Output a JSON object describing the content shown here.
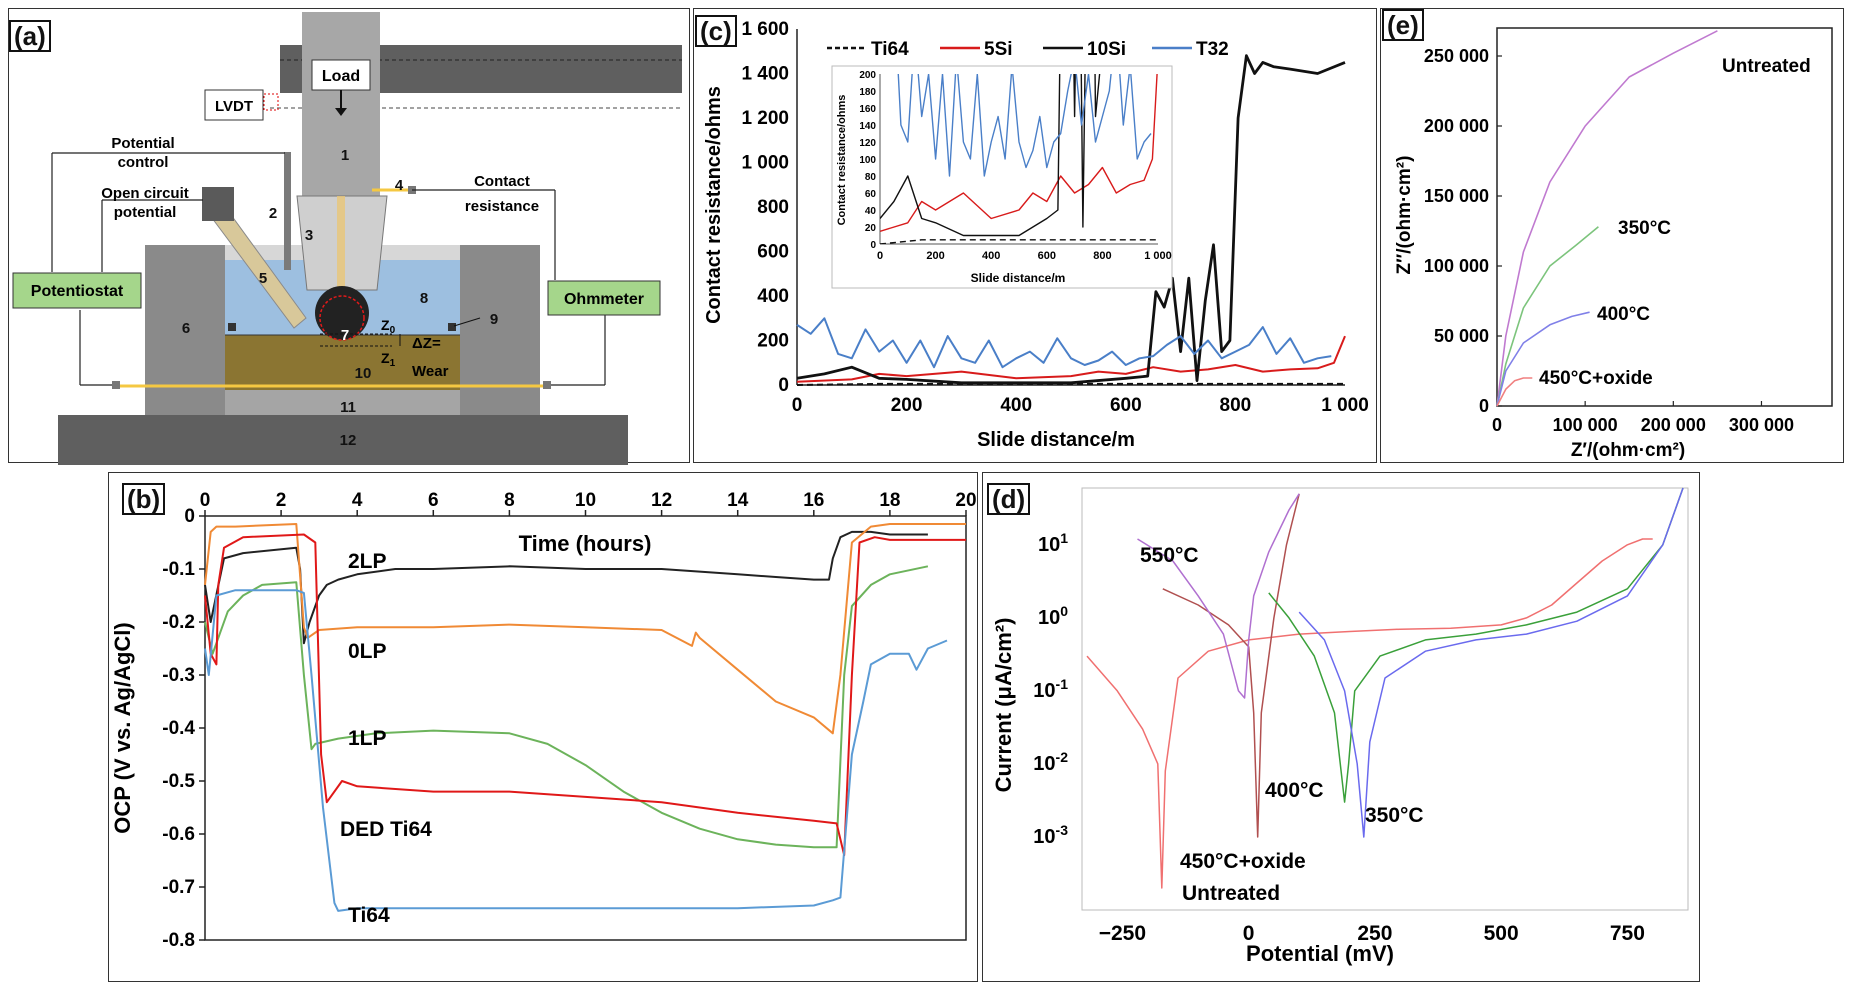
{
  "panels": {
    "a": {
      "label": "(a)",
      "texts": {
        "load": "Load",
        "lvdt": "LVDT",
        "potential_control": "Potential\ncontrol",
        "ocp": "Open circuit\npotential",
        "contact_res": "Contact\nresistance",
        "potentiostat": "Potentiostat",
        "ohmmeter": "Ohmmeter",
        "z0": "Z",
        "z0_sub": "0",
        "z1": "Z",
        "z1_sub": "1",
        "dz": "ΔZ=",
        "wear": "Wear",
        "numbers": [
          "1",
          "2",
          "3",
          "4",
          "5",
          "6",
          "7",
          "8",
          "9",
          "10",
          "11",
          "12"
        ]
      }
    },
    "b": {
      "label": "(b)"
    },
    "c": {
      "label": "(c)"
    },
    "d": {
      "label": "(d)"
    },
    "e": {
      "label": "(e)"
    }
  },
  "chart_data": [
    {
      "panel": "b",
      "type": "line",
      "xlabel": "Time (hours)",
      "ylabel": "OCP (V vs. Ag/AgCl)",
      "xlim": [
        0,
        20
      ],
      "ylim": [
        -0.8,
        0
      ],
      "xticks": [
        "0",
        "2",
        "4",
        "6",
        "8",
        "10",
        "12",
        "14",
        "16",
        "18",
        "20"
      ],
      "yticks": [
        "0",
        "-0.1",
        "-0.2",
        "-0.3",
        "-0.4",
        "-0.5",
        "-0.6",
        "-0.7",
        "-0.8"
      ],
      "series": [
        {
          "name": "2LP",
          "color": "#222222",
          "x": [
            0,
            0.15,
            0.5,
            1,
            2.4,
            2.5,
            2.6,
            2.75,
            3,
            3.2,
            3.5,
            4,
            5,
            6,
            8,
            10,
            12,
            14,
            15,
            16,
            16.4,
            16.5,
            16.7,
            17,
            17.5,
            18,
            19
          ],
          "y": [
            -0.13,
            -0.2,
            -0.08,
            -0.07,
            -0.06,
            -0.1,
            -0.24,
            -0.2,
            -0.15,
            -0.13,
            -0.12,
            -0.11,
            -0.1,
            -0.1,
            -0.095,
            -0.1,
            -0.1,
            -0.11,
            -0.115,
            -0.12,
            -0.12,
            -0.08,
            -0.04,
            -0.03,
            -0.03,
            -0.035,
            -0.035
          ]
        },
        {
          "name": "0LP",
          "color": "#f08a35",
          "x": [
            0,
            0.15,
            0.3,
            0.8,
            2.4,
            2.6,
            2.7,
            3,
            4,
            6,
            8,
            10,
            12,
            12.8,
            12.9,
            13,
            14,
            15,
            16,
            16.5,
            16.7,
            17,
            17.5,
            18,
            20
          ],
          "y": [
            -0.13,
            -0.03,
            -0.02,
            -0.02,
            -0.015,
            -0.21,
            -0.23,
            -0.215,
            -0.21,
            -0.21,
            -0.205,
            -0.21,
            -0.215,
            -0.245,
            -0.22,
            -0.23,
            -0.29,
            -0.35,
            -0.38,
            -0.41,
            -0.3,
            -0.05,
            -0.02,
            -0.015,
            -0.015
          ]
        },
        {
          "name": "1LP",
          "color": "#6cb35b",
          "x": [
            0,
            0.2,
            0.4,
            0.6,
            1,
            1.5,
            2.4,
            2.6,
            2.8,
            2.9,
            3.5,
            4.5,
            6,
            8,
            9,
            10,
            11,
            12,
            13,
            14,
            15,
            16,
            16.6,
            16.8,
            17,
            17.5,
            18,
            19
          ],
          "y": [
            -0.2,
            -0.26,
            -0.22,
            -0.18,
            -0.15,
            -0.13,
            -0.125,
            -0.3,
            -0.44,
            -0.43,
            -0.42,
            -0.41,
            -0.405,
            -0.41,
            -0.43,
            -0.47,
            -0.52,
            -0.56,
            -0.59,
            -0.61,
            -0.62,
            -0.625,
            -0.625,
            -0.3,
            -0.17,
            -0.13,
            -0.11,
            -0.095
          ]
        },
        {
          "name": "DED Ti64",
          "color": "#e01818",
          "x": [
            0,
            0.15,
            0.3,
            0.35,
            0.5,
            1,
            2.6,
            2.9,
            3.05,
            3.2,
            3.6,
            4,
            6,
            8,
            10,
            12,
            14,
            16,
            16.6,
            16.8,
            17.0,
            17.2,
            17.6,
            18,
            19,
            20
          ],
          "y": [
            -0.15,
            -0.26,
            -0.28,
            -0.13,
            -0.06,
            -0.04,
            -0.035,
            -0.05,
            -0.45,
            -0.54,
            -0.5,
            -0.51,
            -0.52,
            -0.52,
            -0.53,
            -0.54,
            -0.56,
            -0.575,
            -0.58,
            -0.64,
            -0.3,
            -0.05,
            -0.04,
            -0.045,
            -0.045,
            -0.045
          ]
        },
        {
          "name": "Ti64",
          "color": "#5b9bd5",
          "x": [
            0,
            0.1,
            0.3,
            0.8,
            1.5,
            2.4,
            2.6,
            2.8,
            3.1,
            3.4,
            3.5,
            4,
            6,
            8,
            10,
            12,
            14,
            16,
            16.5,
            16.7,
            17.0,
            17.3,
            17.5,
            18,
            18.5,
            18.7,
            19,
            19.5
          ],
          "y": [
            -0.25,
            -0.3,
            -0.15,
            -0.14,
            -0.14,
            -0.14,
            -0.145,
            -0.3,
            -0.55,
            -0.73,
            -0.745,
            -0.74,
            -0.74,
            -0.74,
            -0.74,
            -0.74,
            -0.74,
            -0.735,
            -0.725,
            -0.72,
            -0.45,
            -0.35,
            -0.28,
            -0.26,
            -0.26,
            -0.29,
            -0.25,
            -0.235
          ]
        }
      ],
      "annotations": [
        "2LP",
        "0LP",
        "1LP",
        "DED Ti64",
        "Ti64"
      ]
    },
    {
      "panel": "c",
      "type": "line",
      "xlabel": "Slide distance/m",
      "ylabel": "Contact resistance/ohms",
      "xlim": [
        0,
        1000
      ],
      "ylim": [
        0,
        1600
      ],
      "xticks": [
        "0",
        "200",
        "400",
        "600",
        "800",
        "1 000"
      ],
      "yticks": [
        "0",
        "200",
        "400",
        "600",
        "800",
        "1 000",
        "1 200",
        "1 400",
        "1 600"
      ],
      "legend": [
        "Ti64",
        "5Si",
        "10Si",
        "T32"
      ],
      "series": [
        {
          "name": "Ti64",
          "color": "#111111",
          "dashed": true,
          "x": [
            0,
            150,
            1000
          ],
          "y": [
            0,
            5,
            5
          ]
        },
        {
          "name": "5Si",
          "color": "#d81b1b",
          "x": [
            0,
            100,
            150,
            200,
            300,
            400,
            500,
            550,
            600,
            650,
            700,
            750,
            800,
            850,
            900,
            950,
            980,
            1000
          ],
          "y": [
            15,
            25,
            50,
            40,
            60,
            30,
            40,
            60,
            50,
            80,
            60,
            70,
            90,
            60,
            70,
            75,
            100,
            220
          ]
        },
        {
          "name": "10Si",
          "color": "#111111",
          "x": [
            0,
            50,
            100,
            150,
            200,
            300,
            400,
            500,
            600,
            640,
            655,
            670,
            685,
            700,
            715,
            730,
            745,
            760,
            775,
            790,
            805,
            820,
            835,
            850,
            870,
            900,
            950,
            1000
          ],
          "y": [
            30,
            50,
            80,
            30,
            25,
            10,
            10,
            10,
            30,
            40,
            420,
            350,
            480,
            150,
            480,
            20,
            380,
            630,
            150,
            200,
            1200,
            1480,
            1400,
            1450,
            1430,
            1420,
            1400,
            1450
          ]
        },
        {
          "name": "T32",
          "color": "#4a7fc8",
          "x": [
            0,
            25,
            50,
            75,
            100,
            125,
            150,
            175,
            200,
            225,
            250,
            275,
            300,
            325,
            350,
            375,
            400,
            425,
            450,
            475,
            500,
            525,
            550,
            575,
            600,
            625,
            650,
            675,
            700,
            725,
            750,
            775,
            800,
            825,
            850,
            875,
            900,
            925,
            950,
            975
          ],
          "y": [
            270,
            230,
            300,
            140,
            120,
            250,
            150,
            200,
            100,
            200,
            80,
            220,
            120,
            100,
            200,
            80,
            120,
            150,
            100,
            210,
            120,
            90,
            110,
            150,
            90,
            120,
            130,
            180,
            220,
            140,
            200,
            120,
            150,
            180,
            260,
            140,
            210,
            100,
            120,
            130
          ]
        }
      ],
      "inset": {
        "xlabel": "Slide distance/m",
        "ylabel": "Contact resistance/ohms",
        "xlim": [
          0,
          1000
        ],
        "ylim": [
          0,
          200
        ],
        "xticks": [
          "0",
          "200",
          "400",
          "600",
          "800",
          "1 000"
        ],
        "yticks": [
          "0",
          "20",
          "40",
          "60",
          "80",
          "100",
          "120",
          "140",
          "160",
          "180",
          "200"
        ]
      }
    },
    {
      "panel": "d",
      "type": "line",
      "xlabel": "Potential (mV)",
      "ylabel": "Current (μA/cm²)",
      "xlim": [
        -330,
        870
      ],
      "ylog": true,
      "ylim": [
        0.0001,
        60
      ],
      "xticks": [
        "−250",
        "0",
        "250",
        "500",
        "750"
      ],
      "yticks": [
        "10^-3",
        "10^-2",
        "10^-1",
        "10^0",
        "10^1"
      ],
      "series": [
        {
          "name": "Untreated",
          "color": "#f07070",
          "x": [
            -320,
            -260,
            -210,
            -180,
            -172,
            -165,
            -140,
            -80,
            0,
            100,
            200,
            300,
            400,
            500,
            550,
            600,
            650,
            700,
            750,
            780,
            800
          ],
          "y": [
            0.3,
            0.1,
            0.03,
            0.01,
            0.0002,
            0.008,
            0.15,
            0.35,
            0.5,
            0.6,
            0.65,
            0.7,
            0.72,
            0.8,
            1.0,
            1.5,
            3.0,
            6.0,
            10.0,
            12.0,
            12.0
          ]
        },
        {
          "name": "450°C+oxide",
          "color": "#b05050",
          "x": [
            -170,
            -100,
            -40,
            0,
            10,
            18,
            25,
            50,
            75,
            100
          ],
          "y": [
            2.5,
            1.5,
            0.8,
            0.4,
            0.05,
            0.001,
            0.05,
            1.0,
            10,
            50
          ]
        },
        {
          "name": "550°C",
          "color": "#b070d0",
          "x": [
            -220,
            -150,
            -100,
            -50,
            -20,
            -8,
            0,
            10,
            40,
            80,
            100
          ],
          "y": [
            12,
            6,
            2,
            0.6,
            0.1,
            0.08,
            0.5,
            2,
            8,
            30,
            50
          ]
        },
        {
          "name": "400°C",
          "color": "#3aa03a",
          "x": [
            40,
            80,
            130,
            170,
            190,
            198,
            210,
            260,
            350,
            450,
            550,
            650,
            750,
            820,
            860
          ],
          "y": [
            2.2,
            1.0,
            0.3,
            0.05,
            0.003,
            0.01,
            0.1,
            0.3,
            0.5,
            0.6,
            0.8,
            1.2,
            2.5,
            10,
            60
          ]
        },
        {
          "name": "350°C",
          "color": "#6a6aee",
          "x": [
            100,
            150,
            190,
            215,
            228,
            240,
            270,
            350,
            450,
            550,
            650,
            750,
            820,
            860
          ],
          "y": [
            1.2,
            0.5,
            0.1,
            0.01,
            0.001,
            0.02,
            0.15,
            0.35,
            0.5,
            0.6,
            0.9,
            2.0,
            10,
            60
          ]
        }
      ],
      "annotations": [
        "550°C",
        "400°C",
        "350°C",
        "450°C+oxide",
        "Untreated"
      ]
    },
    {
      "panel": "e",
      "type": "line",
      "xlabel": "Z′/(ohm·cm²)",
      "ylabel": "Z″/(ohm·cm²)",
      "xlim": [
        0,
        380000
      ],
      "ylim": [
        0,
        270000
      ],
      "xticks": [
        "0",
        "100 000",
        "200 000",
        "300 000"
      ],
      "yticks": [
        "0",
        "50 000",
        "100 000",
        "150 000",
        "200 000",
        "250 000"
      ],
      "series": [
        {
          "name": "Untreated",
          "color": "#c07ad0",
          "x": [
            0,
            10000,
            30000,
            60000,
            100000,
            150000,
            200000,
            250000
          ],
          "y": [
            0,
            50000,
            110000,
            160000,
            200000,
            235000,
            252000,
            268000
          ]
        },
        {
          "name": "350°C",
          "color": "#7cc47c",
          "x": [
            0,
            10000,
            30000,
            60000,
            90000,
            115000
          ],
          "y": [
            0,
            30000,
            70000,
            100000,
            115000,
            128000
          ]
        },
        {
          "name": "400°C",
          "color": "#8080e8",
          "x": [
            0,
            10000,
            30000,
            60000,
            85000,
            105000
          ],
          "y": [
            0,
            25000,
            45000,
            58000,
            64000,
            67000
          ]
        },
        {
          "name": "450°C+oxide",
          "color": "#f08080",
          "x": [
            0,
            10000,
            20000,
            30000,
            40000
          ],
          "y": [
            0,
            12000,
            18000,
            20000,
            20000
          ]
        }
      ],
      "annotations": [
        "Untreated",
        "350°C",
        "400°C",
        "450°C+oxide"
      ]
    }
  ]
}
